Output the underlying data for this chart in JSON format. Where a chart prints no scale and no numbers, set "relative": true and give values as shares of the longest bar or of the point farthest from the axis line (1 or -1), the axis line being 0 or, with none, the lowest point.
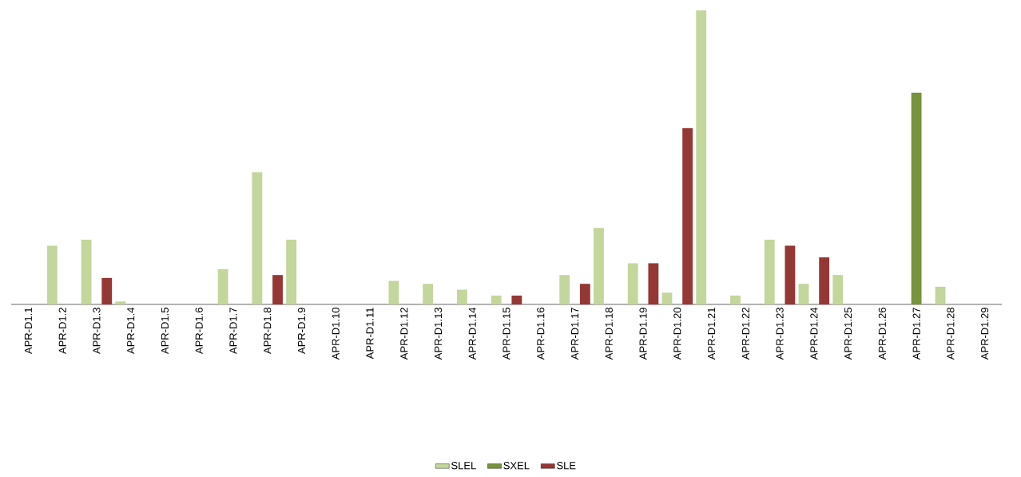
{
  "chart_data": {
    "type": "bar",
    "relative": true,
    "legend": "bottom",
    "categories": [
      "APR-D1.1",
      "APR-D1.2",
      "APR-D1.3",
      "APR-D1.4",
      "APR-D1.5",
      "APR-D1.6",
      "APR-D1.7",
      "APR-D1.8",
      "APR-D1.9",
      "APR-D1.10",
      "APR-D1.11",
      "APR-D1.12",
      "APR-D1.13",
      "APR-D1.14",
      "APR-D1.15",
      "APR-D1.16",
      "APR-D1.17",
      "APR-D1.18",
      "APR-D1.19",
      "APR-D1.20",
      "APR-D1.21",
      "APR-D1.22",
      "APR-D1.23",
      "APR-D1.24",
      "APR-D1.25",
      "APR-D1.26",
      "APR-D1.27",
      "APR-D1.28",
      "APR-D1.29"
    ],
    "series": [
      {
        "name": "SLEL",
        "color": "#c3d69b",
        "values": [
          0,
          0.2,
          0.22,
          0.01,
          0,
          0,
          0.12,
          0.45,
          0.22,
          0,
          0,
          0.08,
          0.07,
          0.05,
          0.03,
          0,
          0.1,
          0.26,
          0.14,
          0.04,
          1,
          0.03,
          0.22,
          0.07,
          0.1,
          0,
          0,
          0.06,
          0
        ]
      },
      {
        "name": "SXEL",
        "color": "#77933c",
        "values": [
          0,
          0,
          0,
          0,
          0,
          0,
          0,
          0,
          0,
          0,
          0,
          0,
          0,
          0,
          0,
          0,
          0,
          0,
          0,
          0,
          0,
          0,
          0,
          0,
          0,
          0,
          0.72,
          0,
          0
        ]
      },
      {
        "name": "SLE",
        "color": "#953735",
        "values": [
          0,
          0,
          0.09,
          0,
          0,
          0,
          0,
          0.1,
          0,
          0,
          0,
          0,
          0,
          0,
          0.03,
          0,
          0.07,
          0,
          0.14,
          0.6,
          0,
          0,
          0.2,
          0.16,
          0,
          0,
          0,
          0,
          0
        ]
      }
    ]
  }
}
